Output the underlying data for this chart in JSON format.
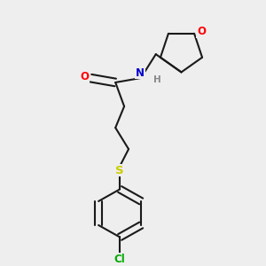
{
  "bg_color": "#eeeeee",
  "bond_color": "#1a1a1a",
  "bond_width": 1.5,
  "atom_colors": {
    "O": "#ff0000",
    "N": "#0000cc",
    "S": "#cccc00",
    "Cl": "#00aa00",
    "H": "#888888",
    "C": "#1a1a1a"
  },
  "font_size": 8.5
}
